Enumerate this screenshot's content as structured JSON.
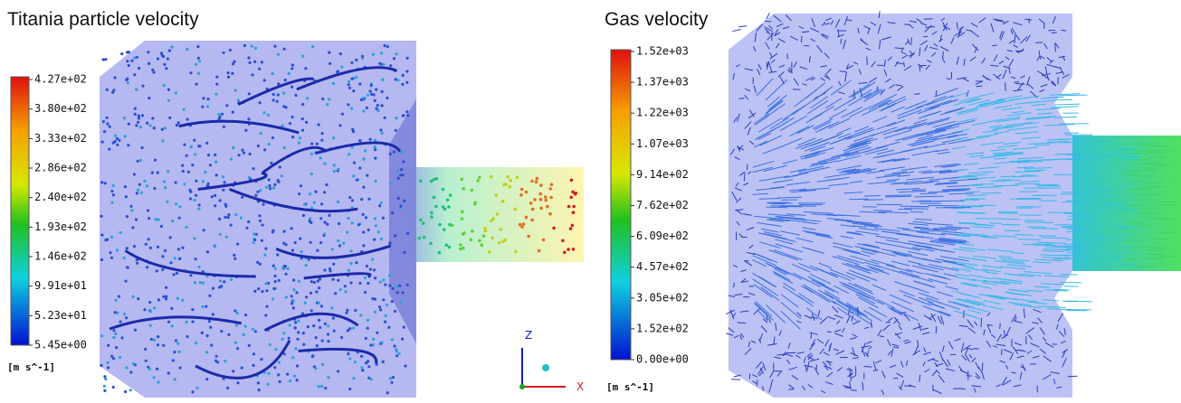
{
  "left_panel": {
    "title": "Titania particle velocity",
    "colorbar": {
      "labels": [
        "4.27e+02",
        "3.80e+02",
        "3.33e+02",
        "2.86e+02",
        "2.40e+02",
        "1.93e+02",
        "1.46e+02",
        "9.91e+01",
        "5.23e+01",
        "5.45e+00"
      ],
      "unit": "[m s^-1]"
    }
  },
  "right_panel": {
    "title": "Gas velocity",
    "colorbar": {
      "labels": [
        "1.52e+03",
        "1.37e+03",
        "1.22e+03",
        "1.07e+03",
        "9.14e+02",
        "7.62e+02",
        "6.09e+02",
        "4.57e+02",
        "3.05e+02",
        "1.52e+02",
        "0.00e+00"
      ],
      "unit": "[m s^-1]"
    }
  },
  "axes": {
    "z": "Z",
    "x": "X"
  }
}
